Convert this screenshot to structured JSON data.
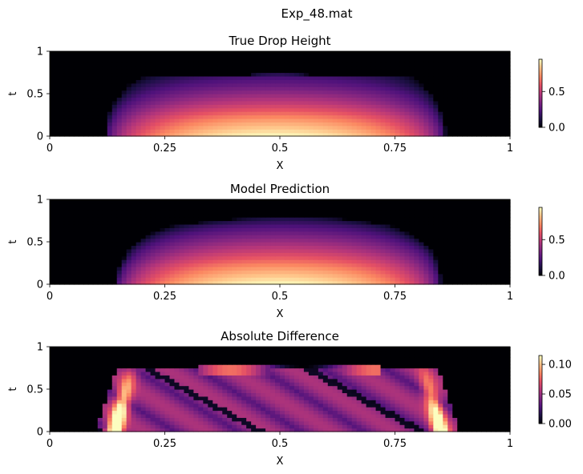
{
  "suptitle": "Exp_48.mat",
  "colormap": "magma",
  "chart_data": [
    {
      "type": "heatmap",
      "title": "True Drop Height",
      "xlabel": "X",
      "ylabel": "t",
      "xlim": [
        0,
        1
      ],
      "ylim": [
        0,
        1
      ],
      "xticks": [
        "0",
        "0.25",
        "0.5",
        "0.75",
        "1"
      ],
      "yticks": [
        "0",
        "0.5",
        "1"
      ],
      "colorbar": {
        "range": [
          0,
          0.95
        ],
        "ticks": [
          "0.0",
          "0.5"
        ]
      },
      "t_levels": [
        0.0,
        0.1,
        0.2,
        0.3,
        0.4,
        0.5,
        0.6,
        0.7,
        0.8,
        0.9,
        1.0
      ],
      "x_left_edge": [
        0.12,
        0.12,
        0.125,
        0.13,
        0.14,
        0.155,
        0.17,
        0.2,
        1,
        1,
        1
      ],
      "x_right_edge": [
        0.86,
        0.86,
        0.855,
        0.85,
        0.84,
        0.83,
        0.81,
        0.79,
        0,
        0,
        0
      ],
      "peak_height": [
        0.95,
        0.85,
        0.75,
        0.62,
        0.5,
        0.4,
        0.3,
        0.22,
        0,
        0,
        0
      ]
    },
    {
      "type": "heatmap",
      "title": "Model Prediction",
      "xlabel": "X",
      "ylabel": "t",
      "xlim": [
        0,
        1
      ],
      "ylim": [
        0,
        1
      ],
      "xticks": [
        "0",
        "0.25",
        "0.5",
        "0.75",
        "1"
      ],
      "yticks": [
        "0",
        "0.5",
        "1"
      ],
      "colorbar": {
        "range": [
          0,
          0.95
        ],
        "ticks": [
          "0.0",
          "0.5"
        ]
      },
      "t_levels": [
        0.0,
        0.1,
        0.2,
        0.3,
        0.4,
        0.5,
        0.6,
        0.7,
        0.8,
        0.9,
        1.0
      ],
      "x_left_edge": [
        0.14,
        0.145,
        0.15,
        0.16,
        0.17,
        0.19,
        0.22,
        0.27,
        0.45,
        1,
        1
      ],
      "x_right_edge": [
        0.85,
        0.85,
        0.845,
        0.84,
        0.83,
        0.81,
        0.78,
        0.74,
        0.6,
        0,
        0
      ],
      "peak_height": [
        0.95,
        0.85,
        0.75,
        0.63,
        0.52,
        0.42,
        0.32,
        0.22,
        0.1,
        0,
        0
      ]
    },
    {
      "type": "heatmap",
      "title": "Absolute Difference",
      "xlabel": "X",
      "ylabel": "t",
      "xlim": [
        0,
        1
      ],
      "ylim": [
        0,
        1
      ],
      "xticks": [
        "0",
        "0.25",
        "0.5",
        "0.75",
        "1"
      ],
      "yticks": [
        "0",
        "0.5",
        "1"
      ],
      "colorbar": {
        "range": [
          0,
          0.115
        ],
        "ticks": [
          "0.00",
          "0.05",
          "0.10"
        ]
      },
      "max_value": 0.115,
      "edge_bands": [
        {
          "x_center": 0.14,
          "t_range": [
            0.0,
            0.7
          ],
          "peak": 0.115
        },
        {
          "x_center": 0.85,
          "t_range": [
            0.0,
            0.7
          ],
          "peak": 0.1
        }
      ],
      "interior_mean": 0.05,
      "top_band_t": 0.75,
      "top_band_peak": 0.08
    }
  ]
}
